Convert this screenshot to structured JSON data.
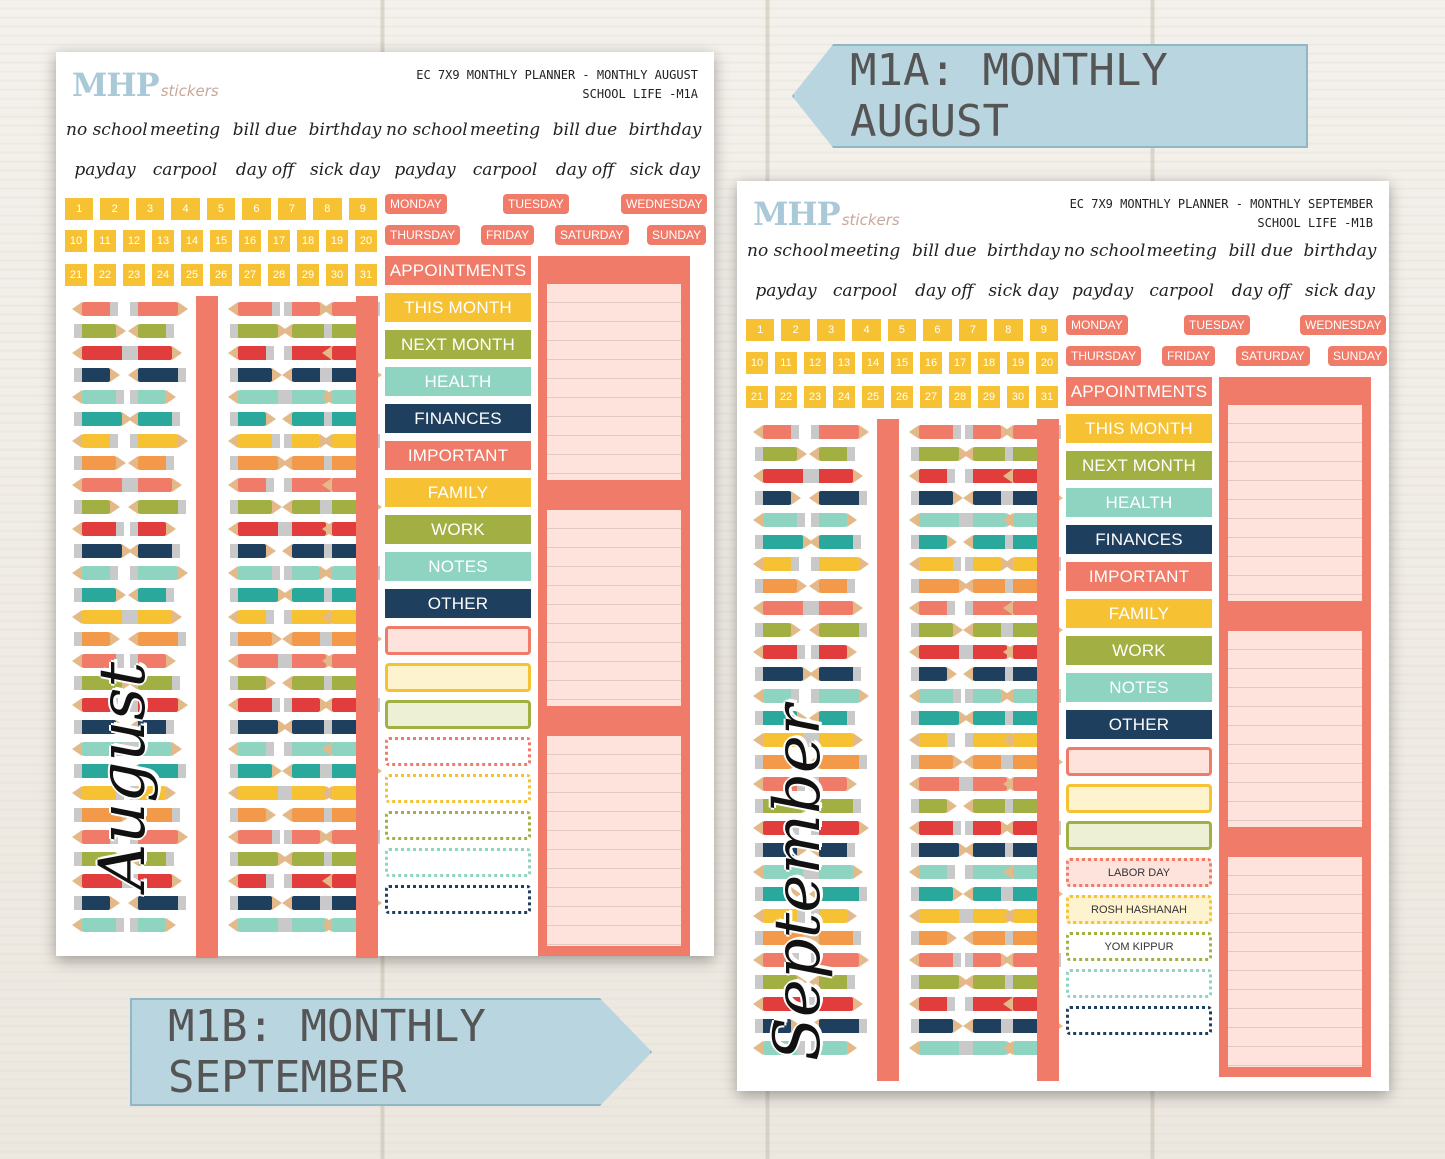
{
  "sheets": [
    {
      "brand": "MHP",
      "brand_sub": "stickers",
      "title_line1": "EC 7X9 MONTHLY PLANNER - MONTHLY AUGUST",
      "title_line2": "SCHOOL LIFE -M1A",
      "month_script": "August"
    },
    {
      "brand": "MHP",
      "brand_sub": "stickers",
      "title_line1": "EC 7X9 MONTHLY PLANNER - MONTHLY SEPTEMBER",
      "title_line2": "SCHOOL LIFE -M1B",
      "month_script": "September"
    }
  ],
  "script_row_1": [
    "no school",
    "meeting",
    "bill due",
    "birthday",
    "no school",
    "meeting",
    "bill due",
    "birthday"
  ],
  "script_row_2": [
    "payday",
    "carpool",
    "day off",
    "sick day",
    "payday",
    "carpool",
    "day off",
    "sick day"
  ],
  "numbers_row_1": [
    "1",
    "2",
    "3",
    "4",
    "5",
    "6",
    "7",
    "8",
    "9"
  ],
  "numbers_row_2": [
    "10",
    "11",
    "12",
    "13",
    "14",
    "15",
    "16",
    "17",
    "18",
    "19",
    "20"
  ],
  "numbers_row_3": [
    "21",
    "22",
    "23",
    "24",
    "25",
    "26",
    "27",
    "28",
    "29",
    "30",
    "31"
  ],
  "weekdays": [
    "MONDAY",
    "TUESDAY",
    "WEDNESDAY",
    "THURSDAY",
    "FRIDAY",
    "SATURDAY",
    "SUNDAY"
  ],
  "labels": [
    "APPOINTMENTS",
    "THIS MONTH",
    "NEXT MONTH",
    "HEALTH",
    "FINANCES",
    "IMPORTANT",
    "FAMILY",
    "WORK",
    "NOTES",
    "OTHER"
  ],
  "holidays": [
    "LABOR DAY",
    "ROSH HASHANAH",
    "YOM KIPPUR"
  ],
  "tags": {
    "a": "M1A: MONTHLY AUGUST",
    "b": "M1B: MONTHLY SEPTEMBER"
  },
  "colors": {
    "coral": "#ef7b68",
    "yellow": "#f6c233",
    "olive": "#a2b043",
    "mint": "#8fd3c1",
    "navy": "#1f3f5f",
    "tag_blue": "#b9d5e0"
  }
}
